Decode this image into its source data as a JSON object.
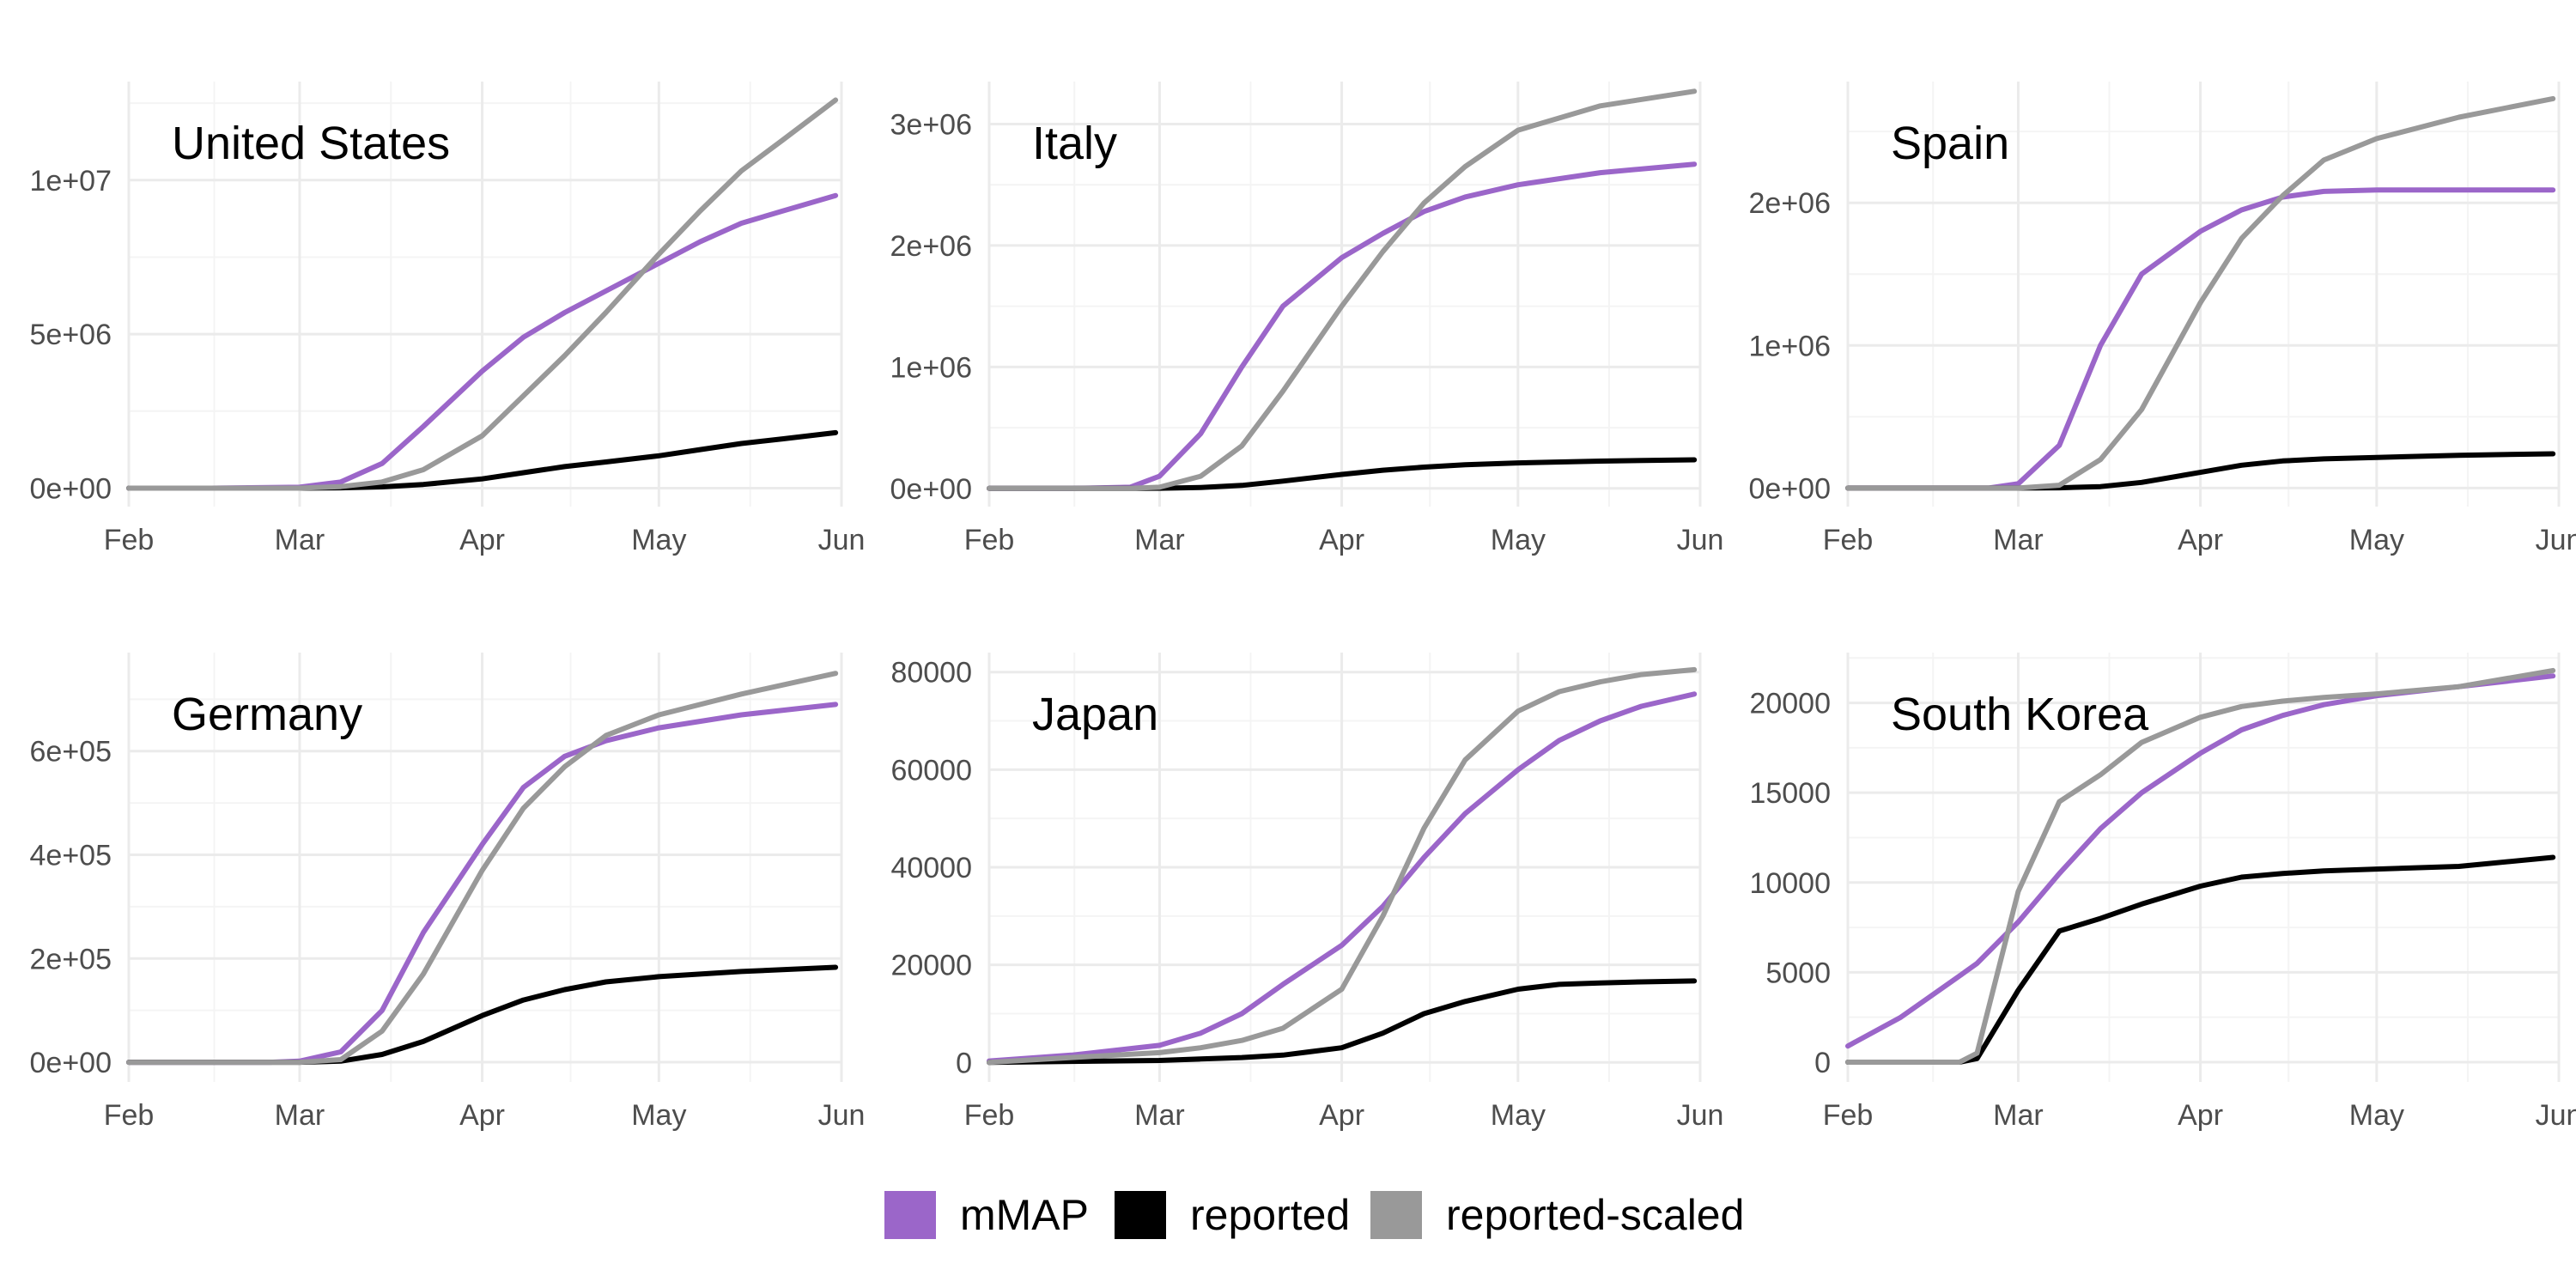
{
  "colors": {
    "mMAP": "#9b66c9",
    "reported": "#000000",
    "reported-scaled": "#999999",
    "grid_major": "#ebebeb",
    "grid_minor": "#f4f4f4"
  },
  "x_tick_labels": [
    "Feb",
    "Mar",
    "Apr",
    "May",
    "Jun"
  ],
  "legend": [
    {
      "key": "mMAP",
      "label": "mMAP"
    },
    {
      "key": "reported",
      "label": "reported"
    },
    {
      "key": "reported-scaled",
      "label": "reported-scaled"
    }
  ],
  "chart_data": [
    {
      "type": "line",
      "title": "United States",
      "x": [
        "2020-02-01",
        "2020-02-15",
        "2020-03-01",
        "2020-03-08",
        "2020-03-15",
        "2020-03-22",
        "2020-04-01",
        "2020-04-08",
        "2020-04-15",
        "2020-04-22",
        "2020-05-01",
        "2020-05-08",
        "2020-05-15",
        "2020-05-22",
        "2020-05-31"
      ],
      "ylim": [
        -600000,
        13200000
      ],
      "yticks": [
        0,
        5000000,
        10000000
      ],
      "ytick_labels": [
        "0e+00",
        "5e+06",
        "1e+07"
      ],
      "series": [
        {
          "name": "mMAP",
          "values": [
            0,
            0,
            30000,
            200000,
            800000,
            2000000,
            3800000,
            4900000,
            5700000,
            6400000,
            7300000,
            8000000,
            8600000,
            9000000,
            9500000
          ]
        },
        {
          "name": "reported",
          "values": [
            0,
            0,
            0,
            10000,
            40000,
            120000,
            300000,
            500000,
            700000,
            850000,
            1050000,
            1250000,
            1450000,
            1600000,
            1800000
          ]
        },
        {
          "name": "reported-scaled",
          "values": [
            0,
            0,
            0,
            50000,
            200000,
            600000,
            1700000,
            3000000,
            4300000,
            5700000,
            7600000,
            9000000,
            10300000,
            11300000,
            12600000
          ]
        }
      ]
    },
    {
      "type": "line",
      "title": "Italy",
      "x": [
        "2020-02-01",
        "2020-02-15",
        "2020-02-25",
        "2020-03-01",
        "2020-03-08",
        "2020-03-15",
        "2020-03-22",
        "2020-04-01",
        "2020-04-08",
        "2020-04-15",
        "2020-04-22",
        "2020-05-01",
        "2020-05-15",
        "2020-05-31"
      ],
      "ylim": [
        -150000,
        3350000
      ],
      "yticks": [
        0,
        1000000,
        2000000,
        3000000
      ],
      "ytick_labels": [
        "0e+00",
        "1e+06",
        "2e+06",
        "3e+06"
      ],
      "series": [
        {
          "name": "mMAP",
          "values": [
            0,
            0,
            10000,
            100000,
            450000,
            1000000,
            1500000,
            1900000,
            2100000,
            2280000,
            2400000,
            2500000,
            2600000,
            2670000
          ]
        },
        {
          "name": "reported",
          "values": [
            0,
            0,
            0,
            1000,
            8000,
            25000,
            60000,
            115000,
            150000,
            175000,
            195000,
            210000,
            225000,
            235000
          ]
        },
        {
          "name": "reported-scaled",
          "values": [
            0,
            0,
            0,
            10000,
            100000,
            350000,
            800000,
            1500000,
            1950000,
            2350000,
            2650000,
            2950000,
            3150000,
            3270000
          ]
        }
      ]
    },
    {
      "type": "line",
      "title": "Spain",
      "x": [
        "2020-02-01",
        "2020-02-25",
        "2020-03-01",
        "2020-03-08",
        "2020-03-15",
        "2020-03-22",
        "2020-04-01",
        "2020-04-08",
        "2020-04-15",
        "2020-04-22",
        "2020-05-01",
        "2020-05-15",
        "2020-05-31"
      ],
      "ylim": [
        -130000,
        2850000
      ],
      "yticks": [
        0,
        1000000,
        2000000
      ],
      "ytick_labels": [
        "0e+00",
        "1e+06",
        "2e+06"
      ],
      "series": [
        {
          "name": "mMAP",
          "values": [
            0,
            0,
            30000,
            300000,
            1000000,
            1500000,
            1800000,
            1950000,
            2040000,
            2080000,
            2090000,
            2090000,
            2090000
          ]
        },
        {
          "name": "reported",
          "values": [
            0,
            0,
            0,
            2000,
            10000,
            40000,
            110000,
            160000,
            190000,
            205000,
            215000,
            230000,
            240000
          ]
        },
        {
          "name": "reported-scaled",
          "values": [
            0,
            0,
            0,
            20000,
            200000,
            550000,
            1300000,
            1750000,
            2050000,
            2300000,
            2450000,
            2600000,
            2730000
          ]
        }
      ]
    },
    {
      "type": "line",
      "title": "Germany",
      "x": [
        "2020-02-01",
        "2020-02-25",
        "2020-03-01",
        "2020-03-08",
        "2020-03-15",
        "2020-03-22",
        "2020-04-01",
        "2020-04-08",
        "2020-04-15",
        "2020-04-22",
        "2020-05-01",
        "2020-05-15",
        "2020-05-31"
      ],
      "ylim": [
        -38000,
        790000
      ],
      "yticks": [
        0,
        200000,
        400000,
        600000
      ],
      "ytick_labels": [
        "0e+00",
        "2e+05",
        "4e+05",
        "6e+05"
      ],
      "series": [
        {
          "name": "mMAP",
          "values": [
            0,
            0,
            2000,
            20000,
            100000,
            250000,
            420000,
            530000,
            590000,
            620000,
            645000,
            670000,
            690000
          ]
        },
        {
          "name": "reported",
          "values": [
            0,
            0,
            0,
            2000,
            15000,
            40000,
            90000,
            120000,
            140000,
            155000,
            165000,
            175000,
            183000
          ]
        },
        {
          "name": "reported-scaled",
          "values": [
            0,
            0,
            0,
            5000,
            60000,
            170000,
            370000,
            490000,
            570000,
            630000,
            670000,
            710000,
            750000
          ]
        }
      ]
    },
    {
      "type": "line",
      "title": "Japan",
      "x": [
        "2020-02-01",
        "2020-02-15",
        "2020-03-01",
        "2020-03-08",
        "2020-03-15",
        "2020-03-22",
        "2020-04-01",
        "2020-04-08",
        "2020-04-15",
        "2020-04-22",
        "2020-05-01",
        "2020-05-08",
        "2020-05-15",
        "2020-05-22",
        "2020-05-31"
      ],
      "ylim": [
        -4000,
        84000
      ],
      "yticks": [
        0,
        20000,
        40000,
        60000,
        80000
      ],
      "ytick_labels": [
        "0",
        "20000",
        "40000",
        "60000",
        "80000"
      ],
      "series": [
        {
          "name": "mMAP",
          "values": [
            300,
            1500,
            3500,
            6000,
            10000,
            16000,
            24000,
            32000,
            42000,
            51000,
            60000,
            66000,
            70000,
            73000,
            75500
          ]
        },
        {
          "name": "reported",
          "values": [
            0,
            200,
            400,
            700,
            1000,
            1500,
            3000,
            6000,
            10000,
            12500,
            15000,
            16000,
            16300,
            16500,
            16700
          ]
        },
        {
          "name": "reported-scaled",
          "values": [
            0,
            1000,
            2000,
            3000,
            4500,
            7000,
            15000,
            30000,
            48000,
            62000,
            72000,
            76000,
            78000,
            79500,
            80500
          ]
        }
      ]
    },
    {
      "type": "line",
      "title": "South Korea",
      "x": [
        "2020-02-01",
        "2020-02-10",
        "2020-02-20",
        "2020-02-23",
        "2020-03-01",
        "2020-03-08",
        "2020-03-15",
        "2020-03-22",
        "2020-04-01",
        "2020-04-08",
        "2020-04-15",
        "2020-04-22",
        "2020-05-01",
        "2020-05-15",
        "2020-05-31"
      ],
      "ylim": [
        -1100,
        22800
      ],
      "yticks": [
        0,
        5000,
        10000,
        15000,
        20000
      ],
      "ytick_labels": [
        "0",
        "5000",
        "10000",
        "15000",
        "20000"
      ],
      "series": [
        {
          "name": "mMAP",
          "values": [
            900,
            2500,
            4800,
            5500,
            7800,
            10500,
            13000,
            15000,
            17200,
            18500,
            19300,
            19900,
            20400,
            20900,
            21500
          ]
        },
        {
          "name": "reported",
          "values": [
            0,
            0,
            0,
            200,
            4000,
            7300,
            8000,
            8800,
            9800,
            10300,
            10500,
            10650,
            10750,
            10900,
            11400
          ]
        },
        {
          "name": "reported-scaled",
          "values": [
            0,
            0,
            0,
            500,
            9500,
            14500,
            16000,
            17800,
            19200,
            19800,
            20100,
            20300,
            20500,
            20900,
            21800
          ]
        }
      ]
    }
  ]
}
